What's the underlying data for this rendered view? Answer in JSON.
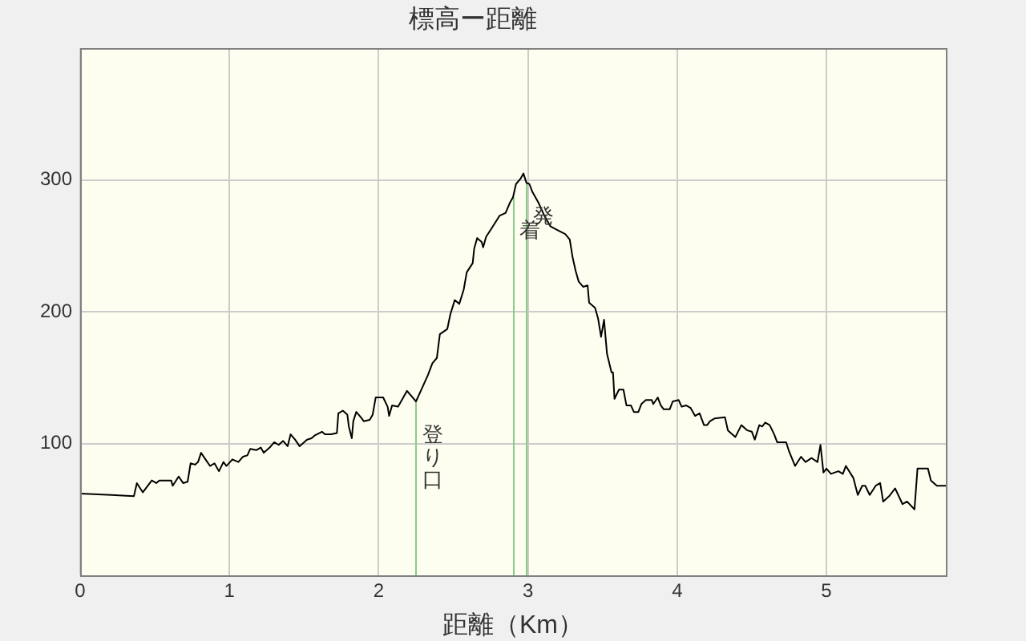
{
  "chart_data": {
    "type": "line",
    "title": "標高ー距離",
    "xlabel": "距離（Km）",
    "color": "#000000",
    "x": [
      0,
      0.21,
      0.36,
      0.38,
      0.42,
      0.48,
      0.51,
      0.53,
      0.61,
      0.62,
      0.66,
      0.69,
      0.72,
      0.74,
      0.77,
      0.79,
      0.81,
      0.84,
      0.87,
      0.9,
      0.93,
      0.96,
      0.98,
      1.02,
      1.06,
      1.09,
      1.12,
      1.14,
      1.18,
      1.21,
      1.23,
      1.27,
      1.3,
      1.33,
      1.36,
      1.39,
      1.41,
      1.44,
      1.47,
      1.52,
      1.55,
      1.57,
      1.62,
      1.64,
      1.68,
      1.72,
      1.73,
      1.76,
      1.79,
      1.8,
      1.82,
      1.83,
      1.85,
      1.88,
      1.9,
      1.94,
      1.96,
      1.98,
      2.03,
      2.06,
      2.07,
      2.09,
      2.13,
      2.15,
      2.19,
      2.22,
      2.25,
      2.29,
      2.33,
      2.36,
      2.39,
      2.41,
      2.46,
      2.48,
      2.51,
      2.54,
      2.57,
      2.59,
      2.63,
      2.64,
      2.66,
      2.69,
      2.7,
      2.72,
      2.76,
      2.81,
      2.85,
      2.88,
      2.9,
      2.92,
      2.95,
      2.97,
      2.99,
      3.01,
      3.03,
      3.07,
      3.11,
      3.15,
      3.2,
      3.25,
      3.28,
      3.3,
      3.32,
      3.34,
      3.37,
      3.4,
      3.41,
      3.45,
      3.47,
      3.49,
      3.51,
      3.53,
      3.56,
      3.57,
      3.58,
      3.61,
      3.64,
      3.66,
      3.69,
      3.71,
      3.74,
      3.76,
      3.79,
      3.83,
      3.84,
      3.87,
      3.89,
      3.91,
      3.95,
      3.97,
      4.01,
      4.03,
      4.06,
      4.09,
      4.12,
      4.15,
      4.18,
      4.2,
      4.22,
      4.25,
      4.32,
      4.34,
      4.39,
      4.43,
      4.47,
      4.5,
      4.52,
      4.55,
      4.57,
      4.59,
      4.62,
      4.65,
      4.67,
      4.73,
      4.75,
      4.79,
      4.83,
      4.86,
      4.9,
      4.94,
      4.96,
      4.98,
      5,
      5.03,
      5.08,
      5.11,
      5.13,
      5.18,
      5.21,
      5.24,
      5.26,
      5.29,
      5.33,
      5.36,
      5.38,
      5.42,
      5.46,
      5.51,
      5.54,
      5.59,
      5.61,
      5.68,
      5.7,
      5.74,
      5.8
    ],
    "values": [
      62,
      61,
      60,
      70,
      63,
      72,
      70,
      72,
      72,
      68,
      75,
      70,
      71,
      85,
      84,
      86,
      93,
      88,
      83,
      85,
      79,
      86,
      83,
      88,
      86,
      90,
      91,
      96,
      95,
      97,
      93,
      97,
      101,
      99,
      102,
      98,
      107,
      103,
      98,
      103,
      104,
      106,
      109,
      107,
      107,
      108,
      123,
      125,
      122,
      113,
      104,
      117,
      124,
      120,
      117,
      118,
      122,
      135,
      135,
      128,
      121,
      129,
      128,
      132,
      140,
      136,
      132,
      142,
      152,
      161,
      165,
      183,
      187,
      198,
      209,
      206,
      217,
      230,
      237,
      248,
      256,
      253,
      249,
      257,
      264,
      273,
      275,
      283,
      287,
      297,
      301,
      305,
      298,
      297,
      291,
      283,
      273,
      265,
      262,
      259,
      255,
      241,
      231,
      223,
      219,
      220,
      207,
      203,
      195,
      181,
      194,
      168,
      154,
      154,
      134,
      141,
      141,
      129,
      129,
      124,
      124,
      130,
      133,
      133,
      130,
      135,
      129,
      126,
      126,
      132,
      133,
      128,
      129,
      127,
      121,
      123,
      114,
      114,
      117,
      119,
      120,
      110,
      105,
      114,
      110,
      109,
      103,
      114,
      113,
      116,
      114,
      107,
      101,
      101,
      94,
      83,
      90,
      86,
      89,
      86,
      99,
      78,
      81,
      77,
      79,
      77,
      83,
      74,
      61,
      68,
      68,
      61,
      68,
      70,
      56,
      60,
      66,
      54,
      56,
      50,
      81,
      81,
      72,
      68,
      68
    ],
    "xlim": [
      0,
      5.8
    ],
    "xticks": [
      0,
      1,
      2,
      3,
      4,
      5
    ],
    "ylim": [
      0,
      400
    ],
    "yticks": [
      100,
      200,
      300
    ],
    "grid": true,
    "ref_lines": [
      {
        "axis": "x",
        "value": 2.25,
        "label": "登り口",
        "color": "#88cc88"
      },
      {
        "axis": "x",
        "value": 2.9,
        "label": "着",
        "color": "#88cc88"
      },
      {
        "axis": "x",
        "value": 2.99,
        "label": "発",
        "color": "#88cc88"
      }
    ]
  }
}
